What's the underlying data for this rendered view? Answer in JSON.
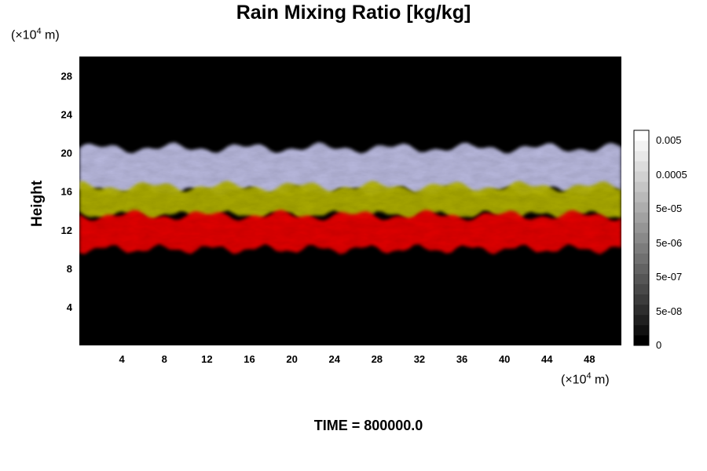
{
  "chart_data": {
    "type": "heatmap",
    "title": "Rain Mixing Ratio [kg/kg]",
    "xlabel": "",
    "ylabel": "Height",
    "x_unit": "(×10⁴ m)",
    "y_unit": "(×10⁴ m)",
    "x_ticks": [
      4,
      8,
      12,
      16,
      20,
      24,
      28,
      32,
      36,
      40,
      44,
      48
    ],
    "y_ticks": [
      4,
      8,
      12,
      16,
      20,
      24,
      28
    ],
    "xlim": [
      0,
      51
    ],
    "ylim": [
      0,
      30
    ],
    "colorbar_labels": [
      "0.005",
      "0.0005",
      "5e-05",
      "5e-06",
      "5e-07",
      "5e-08",
      "0"
    ],
    "layers": [
      {
        "color": "#c3c3ea",
        "ymin": 16,
        "ymax": 20.5
      },
      {
        "color": "#b4b400",
        "ymin": 13.5,
        "ymax": 16.5
      },
      {
        "color": "#ee0000",
        "ymin": 10,
        "ymax": 13.5
      }
    ],
    "time_label": "TIME = 800000.0"
  }
}
